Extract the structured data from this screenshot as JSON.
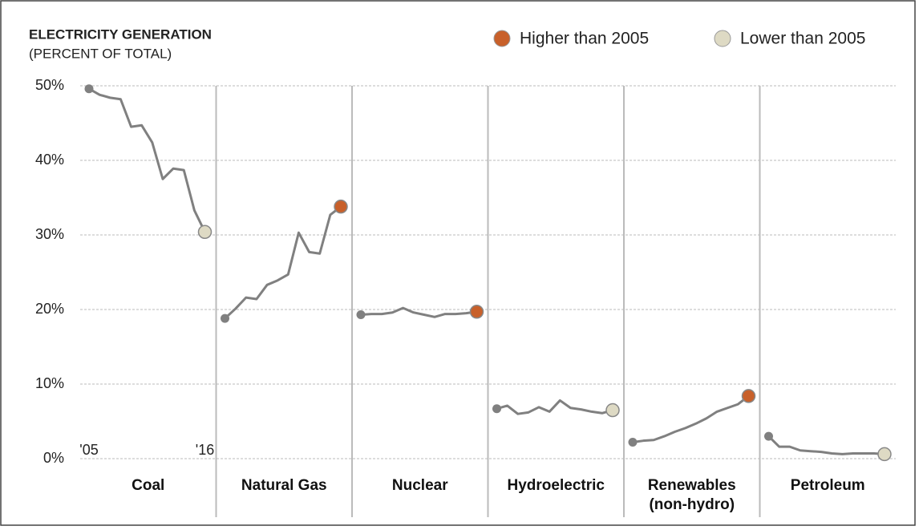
{
  "chart_data": {
    "type": "line",
    "title": "ELECTRICITY GENERATION",
    "subtitle": "(PERCENT OF TOTAL)",
    "legend": [
      {
        "name": "Higher than 2005",
        "color": "#c8602a"
      },
      {
        "name": "Lower than 2005",
        "color": "#dedac4"
      }
    ],
    "line_color": "#808080",
    "categories": [
      "'05",
      null,
      null,
      null,
      null,
      null,
      null,
      null,
      null,
      null,
      null,
      "'16"
    ],
    "series": [
      {
        "name": "Coal",
        "values": [
          49.6,
          48.8,
          48.4,
          48.2,
          44.5,
          44.7,
          42.4,
          37.5,
          38.9,
          38.7,
          33.3,
          30.4
        ]
      },
      {
        "name": "Natural Gas",
        "values": [
          18.8,
          20.1,
          21.6,
          21.4,
          23.3,
          23.9,
          24.7,
          30.3,
          27.7,
          27.5,
          32.7,
          33.8
        ]
      },
      {
        "name": "Nuclear",
        "values": [
          19.3,
          19.4,
          19.4,
          19.6,
          20.2,
          19.6,
          19.3,
          19.0,
          19.4,
          19.4,
          19.5,
          19.7
        ]
      },
      {
        "name": "Hydroelectric",
        "values": [
          6.7,
          7.1,
          6.0,
          6.2,
          6.9,
          6.3,
          7.8,
          6.8,
          6.6,
          6.3,
          6.1,
          6.5
        ]
      },
      {
        "name": "Renewables (non-hydro)",
        "values": [
          2.2,
          2.4,
          2.5,
          3.0,
          3.6,
          4.1,
          4.7,
          5.4,
          6.3,
          6.8,
          7.3,
          8.4
        ]
      },
      {
        "name": "Petroleum",
        "values": [
          3.0,
          1.6,
          1.6,
          1.1,
          1.0,
          0.9,
          0.7,
          0.6,
          0.7,
          0.7,
          0.7,
          0.6
        ]
      }
    ],
    "ylim": [
      0,
      50
    ],
    "yticks": [
      {
        "value": 0,
        "label": "0%"
      },
      {
        "value": 10,
        "label": "10%"
      },
      {
        "value": 20,
        "label": "20%"
      },
      {
        "value": 30,
        "label": "30%"
      },
      {
        "value": 40,
        "label": "40%"
      },
      {
        "value": 50,
        "label": "50%"
      }
    ],
    "grid": true
  }
}
